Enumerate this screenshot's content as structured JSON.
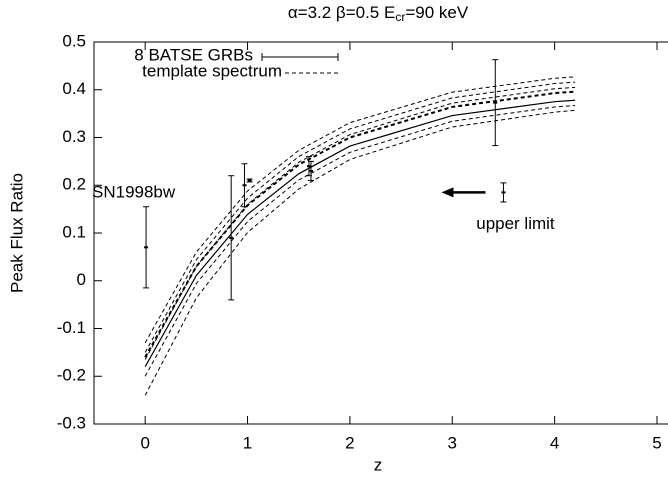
{
  "chart_data": {
    "type": "errorbar",
    "title": "α=3.2    β=0.5    E",
    "title_sub": "cr",
    "title_end": "=90 keV",
    "x_label": "z",
    "y_label": "Peak Flux Ratio",
    "xlim": [
      -0.5,
      5
    ],
    "ylim": [
      -0.3,
      0.5
    ],
    "xticks": [
      0,
      1,
      2,
      3,
      4,
      5
    ],
    "yticks": [
      -0.3,
      -0.2,
      -0.1,
      0,
      0.1,
      0.2,
      0.3,
      0.4,
      0.5
    ],
    "series": [
      {
        "name": "8 BATSE GRBs",
        "color": "#000000",
        "x": [
          0.0085,
          0.84,
          0.97,
          1.02,
          1.6,
          1.62,
          3.42
        ],
        "values": [
          0.07,
          0.09,
          0.2,
          0.21,
          0.24,
          0.23,
          0.373
        ],
        "errors": [
          0.085,
          0.13,
          0.045,
          0.003,
          0.02,
          0.02,
          0.09
        ]
      }
    ],
    "curves": {
      "name": "template spectrum",
      "color": "#000000",
      "x": [
        0,
        0.5,
        1,
        1.5,
        2,
        3,
        4,
        4.2
      ],
      "lines": [
        {
          "style": "dashed",
          "values": [
            -0.13,
            0.06,
            0.188,
            0.273,
            0.331,
            0.395,
            0.424,
            0.427
          ]
        },
        {
          "style": "dashed",
          "values": [
            -0.15,
            0.044,
            0.173,
            0.26,
            0.318,
            0.383,
            0.413,
            0.416
          ]
        },
        {
          "style": "dashed",
          "values": [
            -0.165,
            0.03,
            0.16,
            0.248,
            0.306,
            0.372,
            0.402,
            0.405
          ]
        },
        {
          "style": "thick-dashed",
          "values": [
            -0.16,
            0.03,
            0.158,
            0.243,
            0.3,
            0.364,
            0.393,
            0.396
          ]
        },
        {
          "style": "solid",
          "values": [
            -0.18,
            0.011,
            0.139,
            0.224,
            0.282,
            0.346,
            0.375,
            0.378
          ]
        },
        {
          "style": "dashed",
          "values": [
            -0.2,
            -0.006,
            0.124,
            0.211,
            0.269,
            0.334,
            0.364,
            0.367
          ]
        },
        {
          "style": "dashed",
          "values": [
            -0.24,
            -0.036,
            0.101,
            0.192,
            0.254,
            0.322,
            0.353,
            0.357
          ]
        }
      ]
    },
    "upper_limit": {
      "x": 3.5,
      "value": 0.185,
      "error": 0.02,
      "label": "upper limit"
    },
    "annotation": "SN1998bw"
  }
}
